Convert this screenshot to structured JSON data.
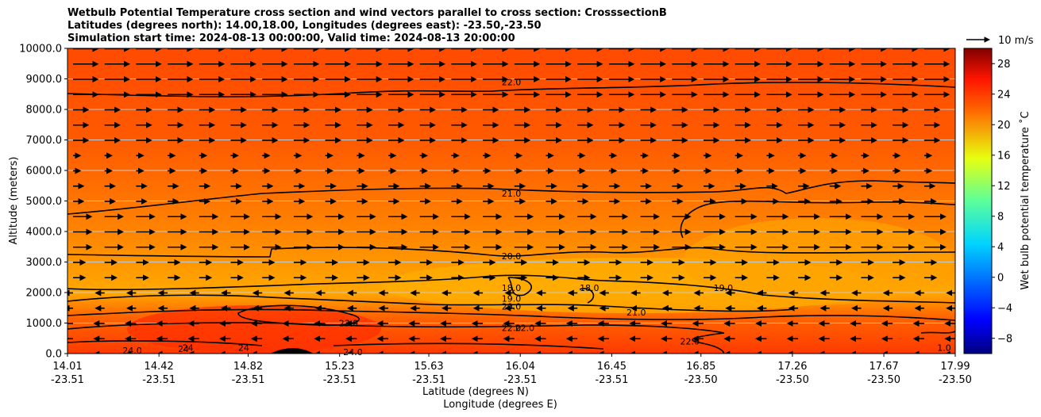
{
  "titles": [
    "Wetbulb Potential Temperature cross section and wind vectors parallel to cross section: CrosssectionB",
    "Latitudes (degrees north): 14.00,18.00, Longitudes (degrees east): -23.50,-23.50",
    "Simulation start time: 2024-08-13 00:00:00, Valid time: 2024-08-13 20:00:00"
  ],
  "chart_data": {
    "type": "heatmap",
    "ylabel": "Altitude (meters)",
    "xlabel_lat": "Latitude (degrees N)",
    "xlabel_lon": "Longitude (degrees E)",
    "ylim": [
      0,
      10000
    ],
    "yticks": [
      "0.0",
      "1000.0",
      "2000.0",
      "3000.0",
      "4000.0",
      "5000.0",
      "6000.0",
      "7000.0",
      "8000.0",
      "9000.0",
      "10000.0"
    ],
    "xticks_lat": [
      "14.01",
      "14.42",
      "14.82",
      "15.23",
      "15.63",
      "16.04",
      "16.45",
      "16.85",
      "17.26",
      "17.67",
      "17.99"
    ],
    "xticks_lon": [
      "-23.51",
      "-23.51",
      "-23.51",
      "-23.51",
      "-23.51",
      "-23.51",
      "-23.51",
      "-23.50",
      "-23.50",
      "-23.50",
      "-23.50"
    ],
    "grid": "horizontal",
    "colorbar": {
      "label": "Wet bulb potential temperature ˚C",
      "range": [
        -10,
        30
      ],
      "ticks": [
        "-8",
        "-4",
        "0",
        "4",
        "8",
        "12",
        "16",
        "20",
        "24",
        "28"
      ],
      "colormap": "jet"
    },
    "quiver_key": "10 m/s",
    "contour_labels": [
      {
        "text": "22.0",
        "lat": 16.0,
        "alt": 8900
      },
      {
        "text": "21.0",
        "lat": 16.0,
        "alt": 5250
      },
      {
        "text": "20.0",
        "lat": 16.0,
        "alt": 3200
      },
      {
        "text": "19.0",
        "lat": 16.95,
        "alt": 2150
      },
      {
        "text": "18.0",
        "lat": 16.0,
        "alt": 2150
      },
      {
        "text": "18.0",
        "lat": 16.35,
        "alt": 2150
      },
      {
        "text": "19.0",
        "lat": 16.0,
        "alt": 1800
      },
      {
        "text": "20.0",
        "lat": 16.0,
        "alt": 1550
      },
      {
        "text": "21.0",
        "lat": 16.56,
        "alt": 1350
      },
      {
        "text": "23.0",
        "lat": 15.27,
        "alt": 1000
      },
      {
        "text": "22.0",
        "lat": 16.0,
        "alt": 850
      },
      {
        "text": "22.0",
        "lat": 16.06,
        "alt": 850
      },
      {
        "text": "22.0",
        "lat": 16.8,
        "alt": 400
      },
      {
        "text": "24.0",
        "lat": 15.29,
        "alt": 50
      },
      {
        "text": "24.0",
        "lat": 14.3,
        "alt": 100
      },
      {
        "text": "24",
        "lat": 14.55,
        "alt": 200
      },
      {
        "text": "24",
        "lat": 14.8,
        "alt": 200
      },
      {
        "text": "24",
        "lat": 14.53,
        "alt": 150
      },
      {
        "text": "1.0",
        "lat": 17.94,
        "alt": 200
      }
    ]
  }
}
